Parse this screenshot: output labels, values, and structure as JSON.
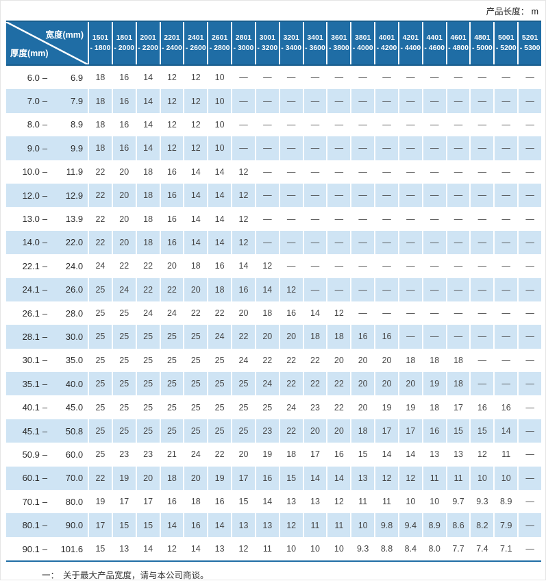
{
  "page": {
    "top_right_label": "产品长度： m",
    "footnote_dash": "一：",
    "footnote_text": "关于最大产品宽度，请与本公司商谈。"
  },
  "table": {
    "corner_top_right": "宽度(mm)",
    "corner_bottom_left": "厚度(mm)",
    "range_separator": "–",
    "colors": {
      "header_bg": "#1f6da5",
      "header_border": "#175d8d",
      "alt_row_bg": "#cfe4f4",
      "value_text": "#454545"
    },
    "width_columns": [
      {
        "from": "1501",
        "to": "- 1800"
      },
      {
        "from": "1801",
        "to": "- 2000"
      },
      {
        "from": "2001",
        "to": "- 2200"
      },
      {
        "from": "2201",
        "to": "- 2400"
      },
      {
        "from": "2401",
        "to": "- 2600"
      },
      {
        "from": "2601",
        "to": "- 2800"
      },
      {
        "from": "2801",
        "to": "- 3000"
      },
      {
        "from": "3001",
        "to": "- 3200"
      },
      {
        "from": "3201",
        "to": "- 3400"
      },
      {
        "from": "3401",
        "to": "- 3600"
      },
      {
        "from": "3601",
        "to": "- 3800"
      },
      {
        "from": "3801",
        "to": "- 4000"
      },
      {
        "from": "4001",
        "to": "- 4200"
      },
      {
        "from": "4201",
        "to": "- 4400"
      },
      {
        "from": "4401",
        "to": "- 4600"
      },
      {
        "from": "4601",
        "to": "- 4800"
      },
      {
        "from": "4801",
        "to": "- 5000"
      },
      {
        "from": "5001",
        "to": "- 5200"
      },
      {
        "from": "5201",
        "to": "- 5300"
      }
    ],
    "rows": [
      {
        "from": "6.0",
        "to": "6.9",
        "values": [
          "18",
          "16",
          "14",
          "12",
          "12",
          "10",
          "—",
          "—",
          "—",
          "—",
          "—",
          "—",
          "—",
          "—",
          "—",
          "—",
          "—",
          "—",
          "—"
        ]
      },
      {
        "from": "7.0",
        "to": "7.9",
        "values": [
          "18",
          "16",
          "14",
          "12",
          "12",
          "10",
          "—",
          "—",
          "—",
          "—",
          "—",
          "—",
          "—",
          "—",
          "—",
          "—",
          "—",
          "—",
          "—"
        ]
      },
      {
        "from": "8.0",
        "to": "8.9",
        "values": [
          "18",
          "16",
          "14",
          "12",
          "12",
          "10",
          "—",
          "—",
          "—",
          "—",
          "—",
          "—",
          "—",
          "—",
          "—",
          "—",
          "—",
          "—",
          "—"
        ]
      },
      {
        "from": "9.0",
        "to": "9.9",
        "values": [
          "18",
          "16",
          "14",
          "12",
          "12",
          "10",
          "—",
          "—",
          "—",
          "—",
          "—",
          "—",
          "—",
          "—",
          "—",
          "—",
          "—",
          "—",
          "—"
        ]
      },
      {
        "from": "10.0",
        "to": "11.9",
        "values": [
          "22",
          "20",
          "18",
          "16",
          "14",
          "14",
          "12",
          "—",
          "—",
          "—",
          "—",
          "—",
          "—",
          "—",
          "—",
          "—",
          "—",
          "—",
          "—"
        ]
      },
      {
        "from": "12.0",
        "to": "12.9",
        "values": [
          "22",
          "20",
          "18",
          "16",
          "14",
          "14",
          "12",
          "—",
          "—",
          "—",
          "—",
          "—",
          "—",
          "—",
          "—",
          "—",
          "—",
          "—",
          "—"
        ]
      },
      {
        "from": "13.0",
        "to": "13.9",
        "values": [
          "22",
          "20",
          "18",
          "16",
          "14",
          "14",
          "12",
          "—",
          "—",
          "—",
          "—",
          "—",
          "—",
          "—",
          "—",
          "—",
          "—",
          "—",
          "—"
        ]
      },
      {
        "from": "14.0",
        "to": "22.0",
        "values": [
          "22",
          "20",
          "18",
          "16",
          "14",
          "14",
          "12",
          "—",
          "—",
          "—",
          "—",
          "—",
          "—",
          "—",
          "—",
          "—",
          "—",
          "—",
          "—"
        ]
      },
      {
        "from": "22.1",
        "to": "24.0",
        "values": [
          "24",
          "22",
          "22",
          "20",
          "18",
          "16",
          "14",
          "12",
          "—",
          "—",
          "—",
          "—",
          "—",
          "—",
          "—",
          "—",
          "—",
          "—",
          "—"
        ]
      },
      {
        "from": "24.1",
        "to": "26.0",
        "values": [
          "25",
          "24",
          "22",
          "22",
          "20",
          "18",
          "16",
          "14",
          "12",
          "—",
          "—",
          "—",
          "—",
          "—",
          "—",
          "—",
          "—",
          "—",
          "—"
        ]
      },
      {
        "from": "26.1",
        "to": "28.0",
        "values": [
          "25",
          "25",
          "24",
          "24",
          "22",
          "22",
          "20",
          "18",
          "16",
          "14",
          "12",
          "—",
          "—",
          "—",
          "—",
          "—",
          "—",
          "—",
          "—"
        ]
      },
      {
        "from": "28.1",
        "to": "30.0",
        "values": [
          "25",
          "25",
          "25",
          "25",
          "25",
          "24",
          "22",
          "20",
          "20",
          "18",
          "18",
          "16",
          "16",
          "—",
          "—",
          "—",
          "—",
          "—",
          "—"
        ]
      },
      {
        "from": "30.1",
        "to": "35.0",
        "values": [
          "25",
          "25",
          "25",
          "25",
          "25",
          "25",
          "24",
          "22",
          "22",
          "22",
          "20",
          "20",
          "20",
          "18",
          "18",
          "18",
          "—",
          "—",
          "—"
        ]
      },
      {
        "from": "35.1",
        "to": "40.0",
        "values": [
          "25",
          "25",
          "25",
          "25",
          "25",
          "25",
          "25",
          "24",
          "22",
          "22",
          "22",
          "20",
          "20",
          "20",
          "19",
          "18",
          "—",
          "—",
          "—"
        ]
      },
      {
        "from": "40.1",
        "to": "45.0",
        "values": [
          "25",
          "25",
          "25",
          "25",
          "25",
          "25",
          "25",
          "25",
          "24",
          "23",
          "22",
          "20",
          "19",
          "19",
          "18",
          "17",
          "16",
          "16",
          "—"
        ]
      },
      {
        "from": "45.1",
        "to": "50.8",
        "values": [
          "25",
          "25",
          "25",
          "25",
          "25",
          "25",
          "25",
          "23",
          "22",
          "20",
          "20",
          "18",
          "17",
          "17",
          "16",
          "15",
          "15",
          "14",
          "—"
        ]
      },
      {
        "from": "50.9",
        "to": "60.0",
        "values": [
          "25",
          "23",
          "23",
          "21",
          "24",
          "22",
          "20",
          "19",
          "18",
          "17",
          "16",
          "15",
          "14",
          "14",
          "13",
          "13",
          "12",
          "11",
          "—"
        ]
      },
      {
        "from": "60.1",
        "to": "70.0",
        "values": [
          "22",
          "19",
          "20",
          "18",
          "20",
          "19",
          "17",
          "16",
          "15",
          "14",
          "14",
          "13",
          "12",
          "12",
          "11",
          "11",
          "10",
          "10",
          "—"
        ]
      },
      {
        "from": "70.1",
        "to": "80.0",
        "values": [
          "19",
          "17",
          "17",
          "16",
          "18",
          "16",
          "15",
          "14",
          "13",
          "13",
          "12",
          "11",
          "11",
          "10",
          "10",
          "9.7",
          "9.3",
          "8.9",
          "—"
        ]
      },
      {
        "from": "80.1",
        "to": "90.0",
        "values": [
          "17",
          "15",
          "15",
          "14",
          "16",
          "14",
          "13",
          "13",
          "12",
          "11",
          "11",
          "10",
          "9.8",
          "9.4",
          "8.9",
          "8.6",
          "8.2",
          "7.9",
          "—"
        ]
      },
      {
        "from": "90.1",
        "to": "101.6",
        "values": [
          "15",
          "13",
          "14",
          "12",
          "14",
          "13",
          "12",
          "11",
          "10",
          "10",
          "10",
          "9.3",
          "8.8",
          "8.4",
          "8.0",
          "7.7",
          "7.4",
          "7.1",
          "—"
        ]
      }
    ]
  }
}
